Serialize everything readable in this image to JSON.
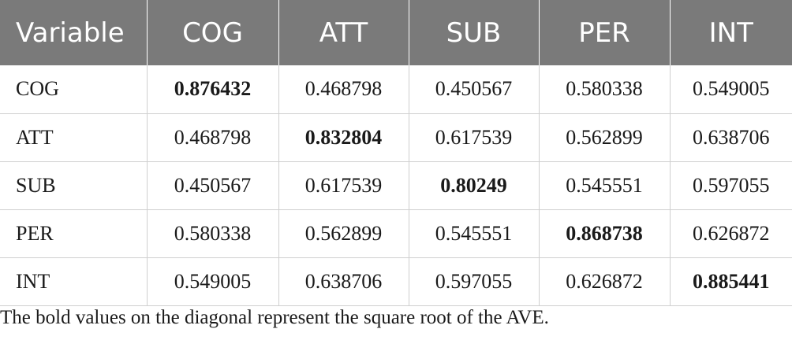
{
  "table": {
    "headers": [
      "Variable",
      "COG",
      "ATT",
      "SUB",
      "PER",
      "INT"
    ],
    "rows": [
      [
        "COG",
        "0.876432",
        "0.468798",
        "0.450567",
        "0.580338",
        "0.549005"
      ],
      [
        "ATT",
        "0.468798",
        "0.832804",
        "0.617539",
        "0.562899",
        "0.638706"
      ],
      [
        "SUB",
        "0.450567",
        "0.617539",
        "0.80249",
        "0.545551",
        "0.597055"
      ],
      [
        "PER",
        "0.580338",
        "0.562899",
        "0.545551",
        "0.868738",
        "0.626872"
      ],
      [
        "INT",
        "0.549005",
        "0.638706",
        "0.597055",
        "0.626872",
        "0.885441"
      ]
    ]
  },
  "footnote": "The bold values on the diagonal represent the square root of the AVE.",
  "colors": {
    "header_bg": "#7a7a7a",
    "header_text": "#ffffff",
    "grid_line": "#cfcfcf",
    "text": "#1a1a1a"
  }
}
